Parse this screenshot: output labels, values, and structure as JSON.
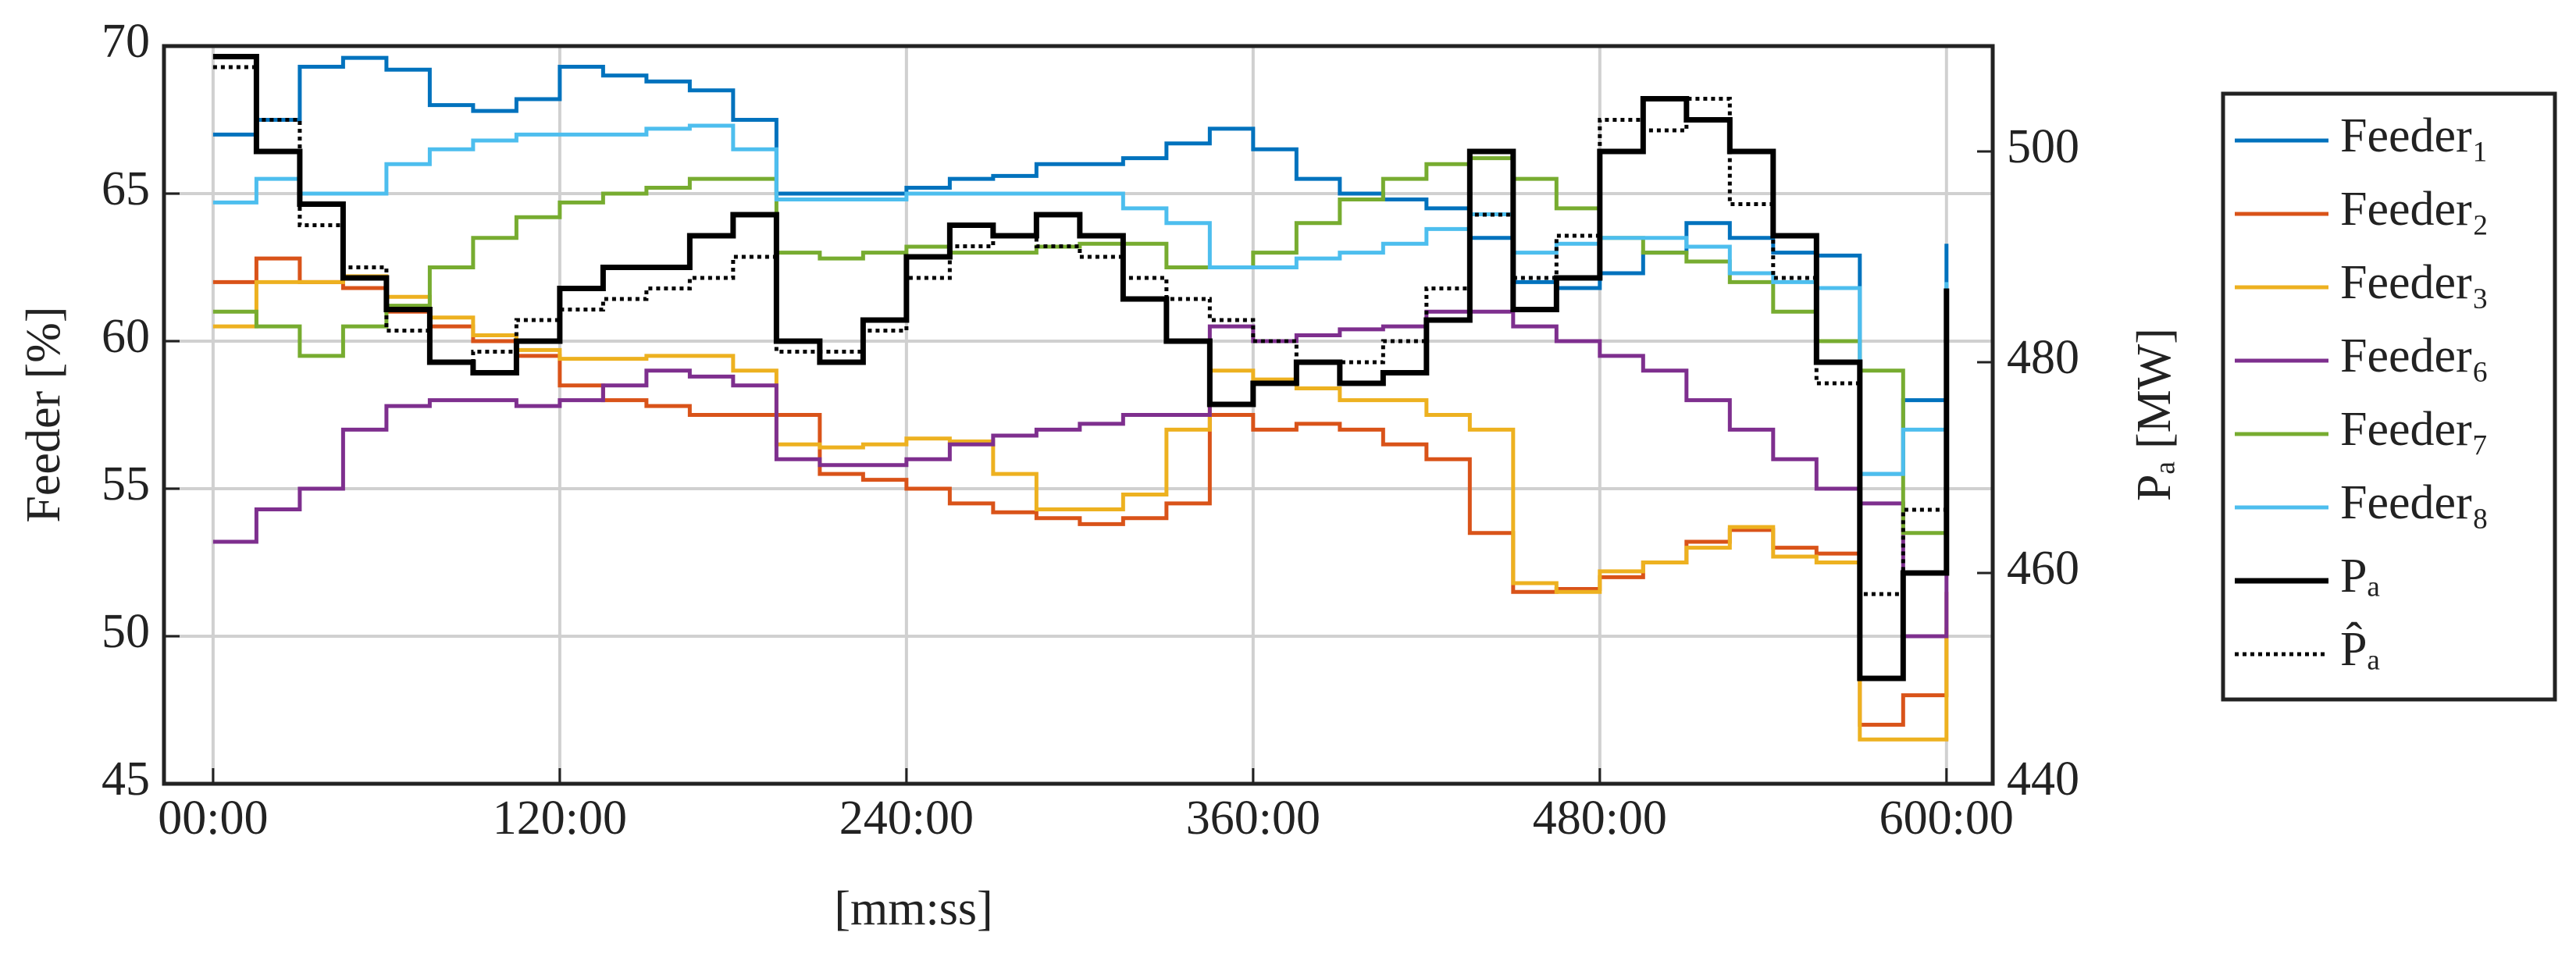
{
  "chart_data": {
    "type": "line",
    "step": "post",
    "xlabel": "[mm:ss]",
    "ylabel": "Feeder [%]",
    "y2label": "Pₐ [MW]",
    "x": [
      0,
      15,
      30,
      45,
      60,
      75,
      90,
      105,
      120,
      135,
      150,
      165,
      180,
      195,
      210,
      225,
      240,
      255,
      270,
      285,
      300,
      315,
      330,
      345,
      360,
      375,
      390,
      405,
      420,
      435,
      450,
      465,
      480,
      495,
      510,
      525,
      540,
      555,
      570,
      585,
      600
    ],
    "xlim": [
      -17,
      616
    ],
    "xticks": [
      {
        "value": 0,
        "label": "00:00"
      },
      {
        "value": 120,
        "label": "120:00"
      },
      {
        "value": 240,
        "label": "240:00"
      },
      {
        "value": 360,
        "label": "360:00"
      },
      {
        "value": 480,
        "label": "480:00"
      },
      {
        "value": 600,
        "label": "600:00"
      }
    ],
    "ylim": [
      45,
      70
    ],
    "yticks": [
      45,
      50,
      55,
      60,
      65,
      70
    ],
    "y2lim": [
      440,
      510
    ],
    "y2ticks": [
      440,
      460,
      480,
      500
    ],
    "grid": true,
    "legend": "outside-right",
    "series": [
      {
        "name": "Feeder₁",
        "color": "#0072BD",
        "values": [
          67,
          67.5,
          69.3,
          69.6,
          69.2,
          68,
          67.8,
          68.2,
          69.3,
          69,
          68.8,
          68.5,
          67.5,
          65,
          65,
          65,
          65.2,
          65.5,
          65.6,
          66,
          66,
          66.2,
          66.7,
          67.2,
          66.5,
          65.5,
          65,
          64.8,
          64.5,
          63.5,
          62,
          61.8,
          62.3,
          63,
          64,
          63.5,
          63,
          62.9,
          55.5,
          58,
          63.3
        ]
      },
      {
        "name": "Feeder₂",
        "color": "#D95319",
        "values": [
          62,
          62.8,
          62,
          61.8,
          61,
          60.5,
          60,
          59.5,
          58.5,
          58,
          57.8,
          57.5,
          57.5,
          57.5,
          55.5,
          55.3,
          55,
          54.5,
          54.2,
          54,
          53.8,
          54,
          54.5,
          57.5,
          57,
          57.2,
          57,
          56.5,
          56,
          53.5,
          51.5,
          51.6,
          52,
          52.5,
          53.2,
          53.6,
          53,
          52.8,
          47,
          48,
          51.5
        ]
      },
      {
        "name": "Feeder₃",
        "color": "#EDB120",
        "values": [
          60.5,
          62,
          62,
          62.2,
          61.5,
          60.8,
          60.2,
          59.7,
          59.4,
          59.4,
          59.5,
          59.5,
          59,
          56.5,
          56.4,
          56.5,
          56.7,
          56.6,
          55.5,
          54.3,
          54.3,
          54.8,
          57,
          59,
          58.7,
          58.4,
          58,
          58,
          57.5,
          57,
          51.8,
          51.5,
          52.2,
          52.5,
          53,
          53.7,
          52.7,
          52.5,
          46.5,
          46.5,
          50.3
        ]
      },
      {
        "name": "Feeder₆",
        "color": "#7E2F8E",
        "values": [
          53.2,
          54.3,
          55,
          57,
          57.8,
          58,
          58,
          57.8,
          58,
          58.5,
          59,
          58.8,
          58.5,
          56,
          55.8,
          55.8,
          56,
          56.5,
          56.8,
          57,
          57.2,
          57.5,
          57.5,
          60.5,
          60,
          60.2,
          60.4,
          60.5,
          61,
          61,
          60.5,
          60,
          59.5,
          59,
          58,
          57,
          56,
          55,
          54.5,
          50,
          52.8
        ]
      },
      {
        "name": "Feeder₇",
        "color": "#77AC30",
        "values": [
          61,
          60.5,
          59.5,
          60.5,
          61.2,
          62.5,
          63.5,
          64.2,
          64.7,
          65,
          65.2,
          65.5,
          65.5,
          63,
          62.8,
          63,
          63.2,
          63,
          63,
          63.2,
          63.3,
          63.3,
          62.5,
          62.5,
          63,
          64,
          64.8,
          65.5,
          66,
          66.2,
          65.5,
          64.5,
          63.5,
          63,
          62.7,
          62,
          61,
          60,
          59,
          53.5,
          58.6
        ]
      },
      {
        "name": "Feeder₈",
        "color": "#4DBEEE",
        "values": [
          64.7,
          65.5,
          65,
          65,
          66,
          66.5,
          66.8,
          67,
          67,
          67,
          67.2,
          67.3,
          66.5,
          64.8,
          64.8,
          64.8,
          65,
          65,
          65,
          65,
          65,
          64.5,
          64,
          62.5,
          62.5,
          62.8,
          63,
          63.3,
          63.8,
          64.3,
          63,
          63.3,
          63.5,
          63.5,
          63.2,
          62.3,
          62,
          61.8,
          55.5,
          57,
          62
        ]
      },
      {
        "name": "Pₐ",
        "color": "#000000",
        "axis": "y2",
        "values": [
          509,
          500,
          495,
          488,
          485,
          480,
          479,
          482,
          487,
          489,
          489,
          492,
          494,
          482,
          480,
          484,
          490,
          493,
          492,
          494,
          492,
          486,
          482,
          476,
          478,
          480,
          478,
          479,
          484,
          500,
          485,
          488,
          500,
          505,
          503,
          500,
          492,
          480,
          450,
          460,
          487
        ]
      },
      {
        "name": "P̂ₐ",
        "color": "#000000",
        "axis": "y2",
        "dash": "dotted",
        "values": [
          508,
          503,
          493,
          489,
          483,
          480,
          481,
          484,
          485,
          486,
          487,
          488,
          490,
          481,
          481,
          483,
          488,
          491,
          492,
          491,
          490,
          488,
          486,
          484,
          482,
          480,
          480,
          482,
          487,
          494,
          488,
          492,
          503,
          502,
          505,
          495,
          488,
          478,
          458,
          466,
          467
        ]
      }
    ]
  }
}
